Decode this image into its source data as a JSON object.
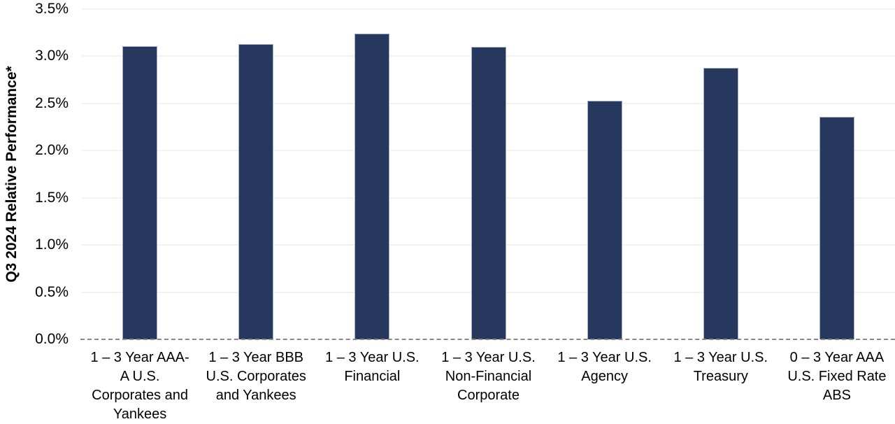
{
  "chart_data": {
    "type": "bar",
    "title": "",
    "xlabel": "",
    "ylabel": "Q3 2024 Relative Performance*",
    "ylim": [
      0,
      3.5
    ],
    "ytick_step": 0.5,
    "yticks": [
      0,
      0.5,
      1.0,
      1.5,
      2.0,
      2.5,
      3.0,
      3.5
    ],
    "ytick_labels": [
      "0.0%",
      "0.5%",
      "1.0%",
      "1.5%",
      "2.0%",
      "2.5%",
      "3.0%",
      "3.5%"
    ],
    "categories": [
      "1 – 3 Year AAA-\nA U.S.\nCorporates and\nYankees",
      "1 – 3 Year BBB\nU.S. Corporates\nand Yankees",
      "1 – 3 Year U.S.\nFinancial",
      "1 – 3 Year U.S.\nNon-Financial\nCorporate",
      "1 – 3 Year U.S.\nAgency",
      "1 – 3 Year U.S.\nTreasury",
      "0 – 3 Year AAA\nU.S. Fixed Rate\nABS"
    ],
    "values": [
      3.11,
      3.13,
      3.24,
      3.1,
      2.53,
      2.88,
      2.36
    ],
    "grid": true,
    "legend": false,
    "zero_line_style": "dashed",
    "colors": {
      "bar_fill": "#26385D",
      "bar_border": "#A3ACC2",
      "gridline": "#F2F2F2",
      "zero_line": "#898989",
      "text": "#000000",
      "background": "#FFFFFF"
    }
  }
}
